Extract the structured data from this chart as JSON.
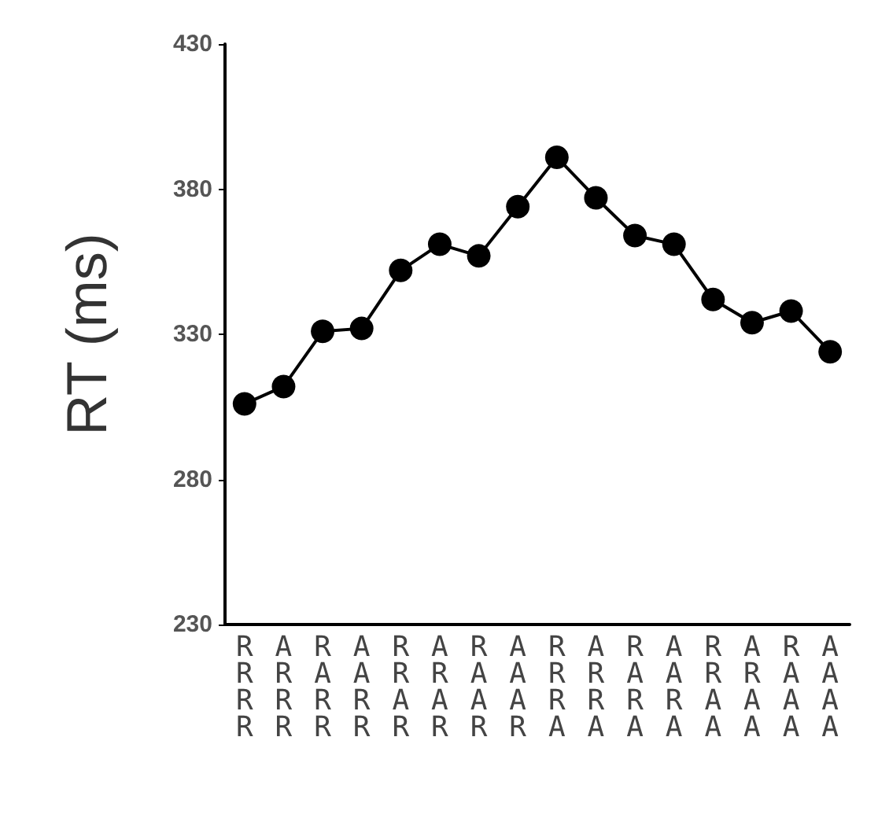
{
  "chart_data": {
    "type": "line",
    "ylabel": "RT (ms)",
    "categories": [
      "R\nR\nR\nR",
      "A\nR\nR\nR",
      "R\nA\nR\nR",
      "A\nA\nR\nR",
      "R\nR\nA\nR",
      "A\nR\nA\nR",
      "R\nA\nA\nR",
      "A\nA\nA\nR",
      "R\nR\nR\nA",
      "A\nR\nR\nA",
      "R\nA\nR\nA",
      "A\nA\nR\nA",
      "R\nR\nA\nA",
      "A\nR\nA\nA",
      "R\nA\nA\nA",
      "A\nA\nA\nA"
    ],
    "series": [
      {
        "color": "#000000",
        "values": [
          306,
          312,
          331,
          332,
          352,
          361,
          357,
          374,
          391,
          377,
          364,
          361,
          342,
          334,
          338,
          324
        ]
      }
    ],
    "ylim": [
      230,
      430
    ],
    "yticks": [
      230,
      280,
      330,
      380,
      430
    ],
    "grid": false,
    "marker": "circle",
    "line_style": "solid"
  }
}
